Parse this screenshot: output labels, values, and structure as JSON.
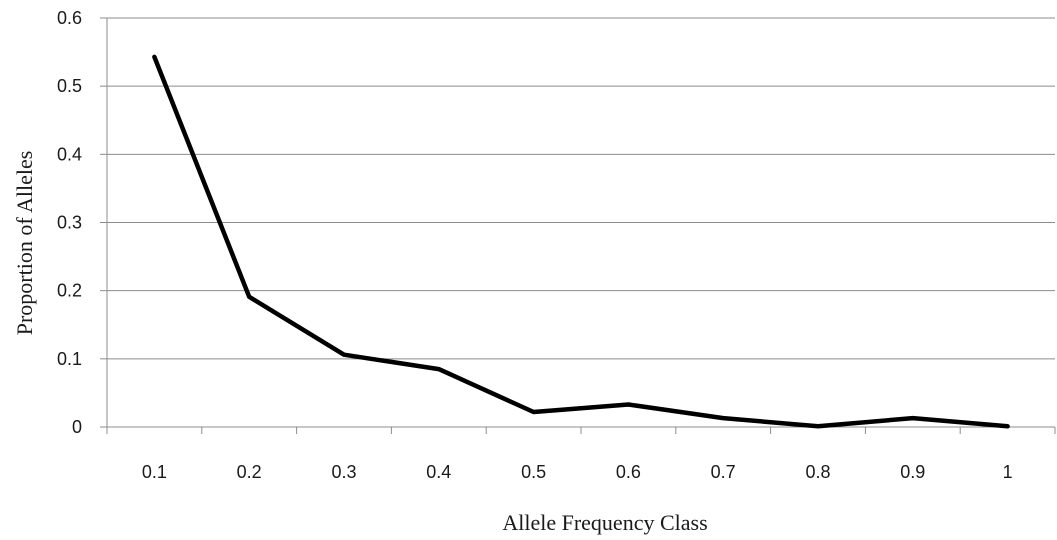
{
  "chart_data": {
    "type": "line",
    "title": "",
    "xlabel": "Allele Frequency Class",
    "ylabel": "Proportion of Alleles",
    "categories": [
      "0.1",
      "0.2",
      "0.3",
      "0.4",
      "0.5",
      "0.6",
      "0.7",
      "0.8",
      "0.9",
      "1"
    ],
    "series": [
      {
        "values": [
          0.543,
          0.191,
          0.106,
          0.085,
          0.022,
          0.033,
          0.013,
          0.001,
          0.013,
          0.001
        ]
      }
    ],
    "ylim": [
      0,
      0.6
    ],
    "yticks": [
      "0",
      "0.1",
      "0.2",
      "0.3",
      "0.4",
      "0.5",
      "0.6"
    ],
    "grid": true,
    "legend": "none",
    "series_color": "#000000"
  }
}
